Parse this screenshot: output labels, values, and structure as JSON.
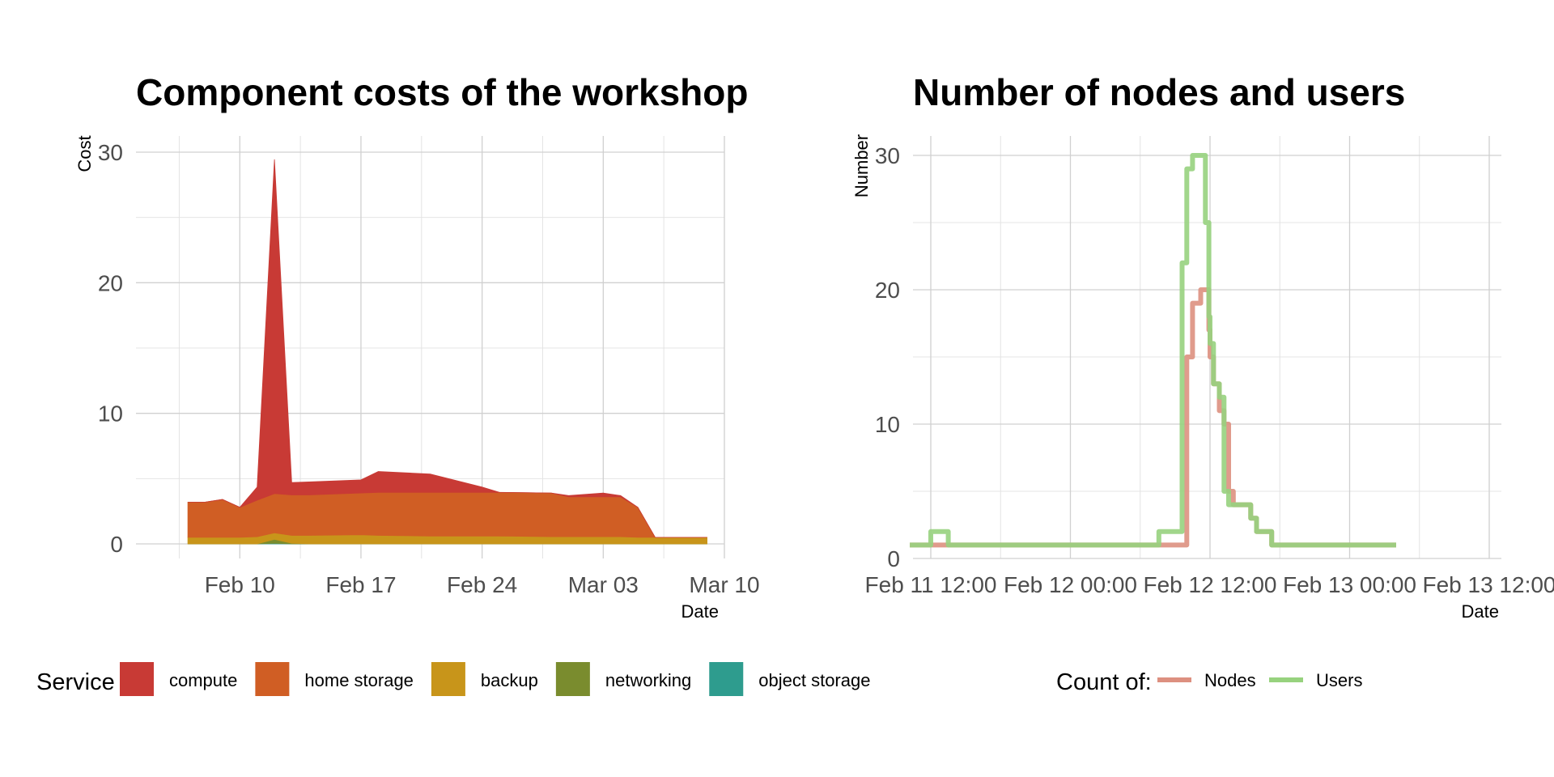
{
  "chart_data": [
    {
      "type": "area",
      "stacked": true,
      "title": "Component costs of the workshop",
      "xlabel": "Date",
      "ylabel": "Cost",
      "xlim": [
        "2021-02-04",
        "2021-03-10"
      ],
      "ylim": [
        0,
        30
      ],
      "x_ticks": [
        "Feb 10",
        "Feb 17",
        "Feb 24",
        "Mar 03",
        "Mar 10"
      ],
      "x_tick_dates": [
        "2021-02-10",
        "2021-02-17",
        "2021-02-24",
        "2021-03-03",
        "2021-03-10"
      ],
      "y_ticks": [
        0,
        10,
        20,
        30
      ],
      "grid": true,
      "legend_title": "Service",
      "legend_position": "bottom",
      "x": [
        "2021-02-07",
        "2021-02-08",
        "2021-02-09",
        "2021-02-10",
        "2021-02-11",
        "2021-02-12",
        "2021-02-13",
        "2021-02-14",
        "2021-02-17",
        "2021-02-18",
        "2021-02-21",
        "2021-02-24",
        "2021-02-25",
        "2021-02-28",
        "2021-03-01",
        "2021-03-03",
        "2021-03-04",
        "2021-03-05",
        "2021-03-06",
        "2021-03-08",
        "2021-03-09"
      ],
      "series": [
        {
          "name": "object storage",
          "color": "#2e9c8e",
          "values": [
            0,
            0,
            0,
            0,
            0,
            0.05,
            0,
            0,
            0,
            0,
            0,
            0,
            0,
            0,
            0,
            0,
            0,
            0,
            0,
            0,
            0
          ]
        },
        {
          "name": "networking",
          "color": "#7a8c2e",
          "values": [
            0,
            0,
            0,
            0,
            0,
            0.3,
            0.05,
            0,
            0,
            0,
            0,
            0,
            0,
            0,
            0,
            0,
            0,
            0,
            0,
            0,
            0
          ]
        },
        {
          "name": "backup",
          "color": "#c8951a",
          "values": [
            0.5,
            0.5,
            0.5,
            0.5,
            0.55,
            0.5,
            0.6,
            0.65,
            0.7,
            0.65,
            0.6,
            0.6,
            0.6,
            0.55,
            0.55,
            0.55,
            0.55,
            0.5,
            0.5,
            0.5,
            0.5
          ]
        },
        {
          "name": "home storage",
          "color": "#d05e24",
          "values": [
            2.7,
            2.7,
            2.9,
            2.3,
            2.8,
            3.0,
            3.1,
            3.1,
            3.2,
            3.3,
            3.35,
            3.35,
            3.35,
            3.35,
            3.05,
            3.05,
            3.05,
            2.3,
            0.0,
            0.0,
            0.0
          ]
        },
        {
          "name": "compute",
          "color": "#c83a35",
          "values": [
            0,
            0,
            0,
            0,
            1.0,
            25.6,
            0.95,
            1.0,
            1.0,
            1.6,
            1.4,
            0.4,
            0.0,
            0.0,
            0.1,
            0.3,
            0.1,
            0.0,
            0.0,
            0.0,
            0.0
          ]
        }
      ]
    },
    {
      "type": "line",
      "title": "Number of nodes and users",
      "xlabel": "Date",
      "ylabel": "Number",
      "x_unit": "hours since Feb 11 00:00",
      "xlim": [
        8,
        55
      ],
      "ylim": [
        0,
        30
      ],
      "x_ticks": [
        "Feb 11 12:00",
        "Feb 12 00:00",
        "Feb 12 12:00",
        "Feb 13 00:00",
        "Feb 13 12:00"
      ],
      "x_tick_values": [
        12,
        24,
        36,
        48,
        60
      ],
      "y_ticks": [
        0,
        10,
        20,
        30
      ],
      "grid": true,
      "legend_title": "Count of:",
      "legend_position": "bottom",
      "series": [
        {
          "name": "Nodes",
          "color": "#dd9080",
          "x": [
            10.2,
            12.5,
            13.5,
            30.0,
            30.5,
            31.0,
            31.6,
            32.0,
            32.3,
            32.8,
            33.6,
            34.0,
            34.5,
            35.2,
            35.6,
            35.9,
            36.0,
            36.3,
            36.8,
            37.2,
            37.6,
            38.0,
            38.5,
            39.0,
            39.5,
            40.0,
            40.6,
            41.3,
            52.0
          ],
          "y": [
            1,
            1,
            1,
            1,
            1,
            1,
            1,
            1,
            1,
            1,
            1,
            15,
            19,
            20,
            20,
            17,
            15,
            13,
            11,
            10,
            5,
            4,
            4,
            4,
            3,
            2,
            2,
            1,
            1
          ]
        },
        {
          "name": "Users",
          "color": "#97d27e",
          "x": [
            10.2,
            10.5,
            12.0,
            13.5,
            30.0,
            30.5,
            31.0,
            31.6,
            32.0,
            32.3,
            32.8,
            33.6,
            34.0,
            34.5,
            35.2,
            35.6,
            35.9,
            36.0,
            36.3,
            36.8,
            37.2,
            37.6,
            38.0,
            38.5,
            39.0,
            39.5,
            40.0,
            40.6,
            41.3,
            52.0
          ],
          "y": [
            1,
            1,
            2,
            1,
            1,
            1,
            1,
            2,
            2,
            2,
            2,
            22,
            29,
            30,
            30,
            25,
            18,
            16,
            13,
            12,
            5,
            4,
            4,
            4,
            4,
            3,
            2,
            2,
            1,
            1
          ]
        }
      ]
    }
  ]
}
